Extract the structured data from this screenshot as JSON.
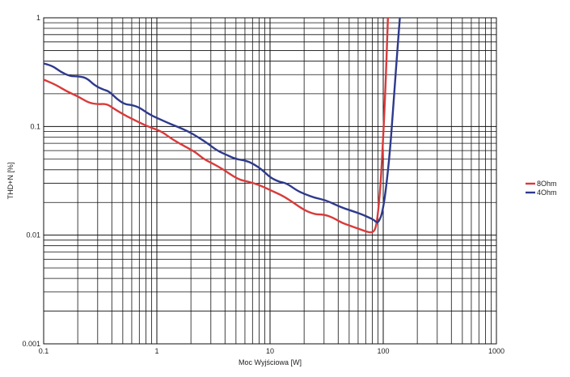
{
  "chart_data": {
    "type": "line",
    "title": "",
    "xlabel": "Moc Wyjściowa [W]",
    "ylabel": "THD+N [%]",
    "x_scale": "log",
    "y_scale": "log",
    "xlim": [
      0.1,
      1000
    ],
    "ylim": [
      0.001,
      1
    ],
    "grid": true,
    "legend_position": "right",
    "x_ticks": [
      "0.1",
      "1",
      "10",
      "100",
      "1000"
    ],
    "y_ticks": [
      "0.001",
      "0.01",
      "0.1",
      "1"
    ],
    "series": [
      {
        "name": "8Ohm",
        "color": "#d93a3a",
        "x": [
          0.1,
          0.13,
          0.16,
          0.2,
          0.25,
          0.3,
          0.36,
          0.42,
          0.5,
          0.6,
          0.75,
          0.9,
          1.1,
          1.4,
          1.8,
          2.2,
          2.6,
          3.2,
          3.9,
          4.7,
          5.5,
          6.5,
          8,
          10,
          13,
          16,
          20,
          25,
          30,
          36,
          43,
          50,
          60,
          70,
          80,
          86,
          90,
          95,
          100,
          105,
          110
        ],
        "y": [
          0.27,
          0.24,
          0.21,
          0.19,
          0.165,
          0.16,
          0.162,
          0.145,
          0.13,
          0.118,
          0.105,
          0.097,
          0.09,
          0.075,
          0.065,
          0.058,
          0.05,
          0.045,
          0.04,
          0.035,
          0.032,
          0.031,
          0.029,
          0.026,
          0.023,
          0.02,
          0.017,
          0.0155,
          0.0155,
          0.0145,
          0.013,
          0.0123,
          0.0115,
          0.0108,
          0.0105,
          0.0115,
          0.016,
          0.03,
          0.08,
          0.25,
          1.0
        ]
      },
      {
        "name": "4Ohm",
        "color": "#2e3a8c",
        "x": [
          0.1,
          0.12,
          0.14,
          0.17,
          0.2,
          0.24,
          0.28,
          0.33,
          0.38,
          0.44,
          0.52,
          0.6,
          0.7,
          0.85,
          1.0,
          1.2,
          1.5,
          1.9,
          2.3,
          2.8,
          3.4,
          4.1,
          5,
          6,
          7.2,
          8.5,
          10,
          12,
          14,
          17,
          20,
          25,
          31,
          38,
          46,
          55,
          65,
          75,
          83,
          88,
          92,
          98,
          105,
          115,
          125,
          135,
          140
        ],
        "y": [
          0.38,
          0.36,
          0.32,
          0.29,
          0.29,
          0.28,
          0.24,
          0.22,
          0.21,
          0.18,
          0.16,
          0.158,
          0.15,
          0.13,
          0.12,
          0.11,
          0.1,
          0.09,
          0.08,
          0.07,
          0.06,
          0.055,
          0.05,
          0.049,
          0.045,
          0.04,
          0.034,
          0.031,
          0.03,
          0.026,
          0.024,
          0.022,
          0.021,
          0.019,
          0.0175,
          0.0165,
          0.0155,
          0.0145,
          0.0138,
          0.013,
          0.0135,
          0.016,
          0.025,
          0.06,
          0.2,
          0.6,
          1.0
        ]
      }
    ]
  }
}
